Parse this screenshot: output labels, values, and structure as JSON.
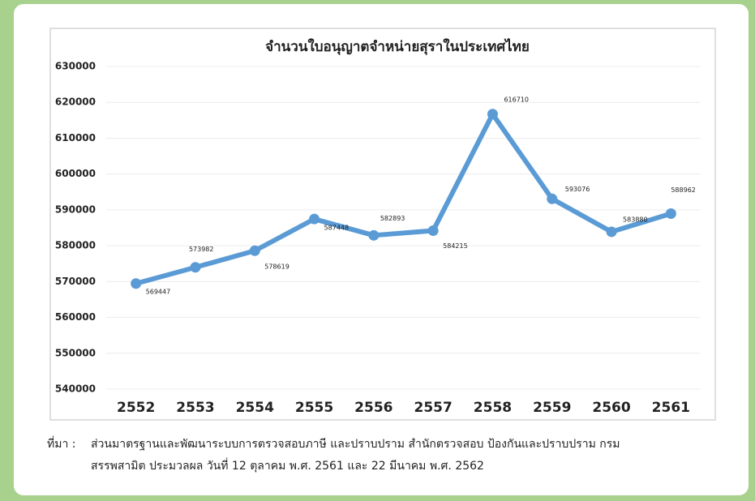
{
  "chart_data": {
    "type": "line",
    "title": "จำนวนใบอนุญาตจำหน่ายสุราในประเทศไทย",
    "categories": [
      "2552",
      "2553",
      "2554",
      "2555",
      "2556",
      "2557",
      "2558",
      "2559",
      "2560",
      "2561"
    ],
    "values": [
      569447,
      573982,
      578619,
      587448,
      582893,
      584215,
      616710,
      593076,
      583880,
      588962
    ],
    "color": "#5b9bd5",
    "ylim": [
      540000,
      630000
    ],
    "yticks": [
      540000,
      550000,
      560000,
      570000,
      580000,
      590000,
      600000,
      610000,
      620000,
      630000
    ],
    "grid": true
  },
  "source": {
    "label": "ที่มา :",
    "lines": [
      "ส่วนมาตรฐานและพัฒนาระบบการตรวจสอบภาษี และปราบปราม สำนักตรวจสอบ ป้องกันและปราบปราม กรม",
      "สรรพสามิต ประมวลผล วันที่ 12 ตุลาคม พ.ศ. 2561 และ 22 มีนาคม พ.ศ. 2562"
    ]
  }
}
